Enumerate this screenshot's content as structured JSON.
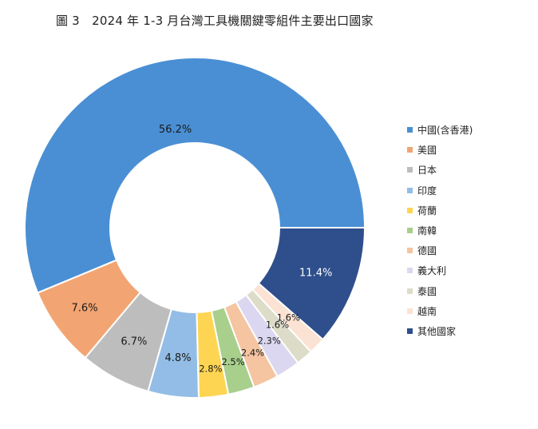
{
  "title": "圖 3　2024 年 1-3 月台灣工具機關鍵零組件主要出口國家",
  "chart_data": {
    "type": "pie",
    "style": "donut",
    "title": "圖 3　2024 年 1-3 月台灣工具機關鍵零組件主要出口國家",
    "legend_position": "right",
    "categories": [
      "中國(含香港)",
      "美國",
      "日本",
      "印度",
      "荷蘭",
      "南韓",
      "德國",
      "義大利",
      "泰國",
      "越南",
      "其他國家"
    ],
    "values": [
      56.2,
      7.6,
      6.7,
      4.8,
      2.8,
      2.5,
      2.4,
      2.3,
      1.6,
      1.6,
      11.4
    ],
    "labels": [
      "56.2%",
      "7.6%",
      "6.7%",
      "4.8%",
      "2.8%",
      "2.5%",
      "2.4%",
      "2.3%",
      "1.6%",
      "1.6%",
      "11.4%"
    ],
    "colors": [
      "#4a8fd4",
      "#f2a572",
      "#bdbdbd",
      "#93bde6",
      "#fdd553",
      "#a8cf8c",
      "#f5c4a0",
      "#dcd7f0",
      "#dcdcc8",
      "#fbe2d2",
      "#2e4f8c"
    ]
  }
}
